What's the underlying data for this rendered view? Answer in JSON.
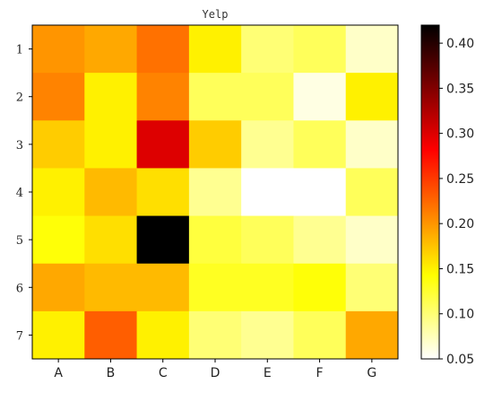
{
  "chart_data": {
    "type": "heatmap",
    "title": "Yelp",
    "x_categories": [
      "A",
      "B",
      "C",
      "D",
      "E",
      "F",
      "G"
    ],
    "y_categories": [
      "1",
      "2",
      "3",
      "4",
      "5",
      "6",
      "7"
    ],
    "values": [
      [
        0.2,
        0.19,
        0.22,
        0.15,
        0.1,
        0.11,
        0.07
      ],
      [
        0.21,
        0.15,
        0.21,
        0.11,
        0.11,
        0.06,
        0.15
      ],
      [
        0.17,
        0.15,
        0.3,
        0.17,
        0.09,
        0.11,
        0.07
      ],
      [
        0.15,
        0.18,
        0.16,
        0.09,
        0.05,
        0.05,
        0.11
      ],
      [
        0.14,
        0.16,
        0.42,
        0.12,
        0.11,
        0.09,
        0.07
      ],
      [
        0.19,
        0.18,
        0.18,
        0.13,
        0.13,
        0.14,
        0.1
      ],
      [
        0.15,
        0.23,
        0.15,
        0.1,
        0.09,
        0.11,
        0.19
      ]
    ],
    "colorbar": {
      "min": 0.05,
      "max": 0.42,
      "ticks": [
        "0.05",
        "0.10",
        "0.15",
        "0.20",
        "0.25",
        "0.30",
        "0.35",
        "0.40"
      ],
      "colormap": "hot_r"
    }
  }
}
